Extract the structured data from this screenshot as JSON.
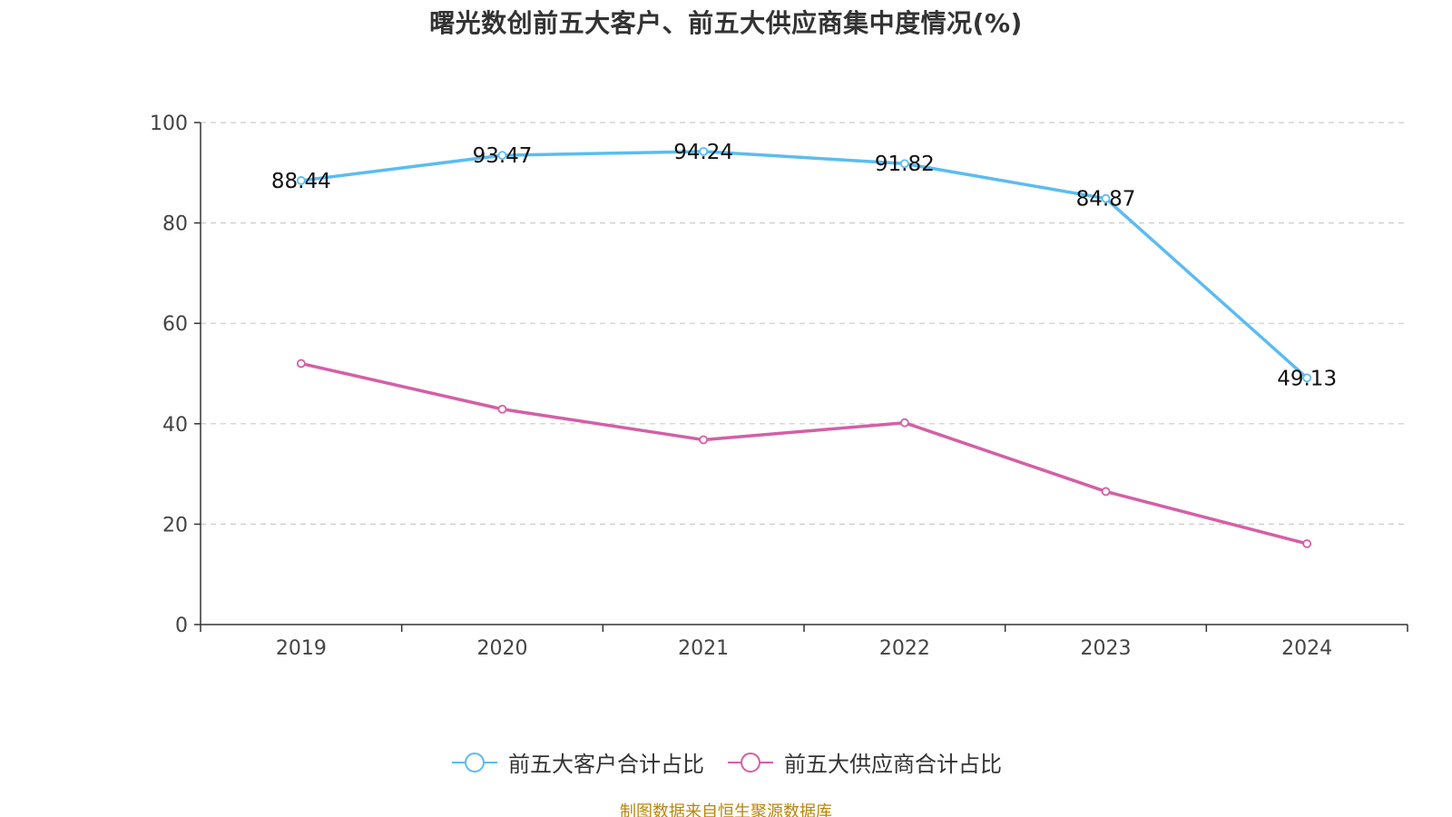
{
  "chart_data": {
    "type": "line",
    "title": "曙光数创前五大客户、前五大供应商集中度情况(%)",
    "categories": [
      "2019",
      "2020",
      "2021",
      "2022",
      "2023",
      "2024"
    ],
    "ylim": [
      0,
      100
    ],
    "yticks": [
      0,
      20,
      40,
      60,
      80,
      100
    ],
    "grid": true,
    "legend_position": "bottom",
    "series": [
      {
        "name": "前五大客户合计占比",
        "color": "#5bbcf0",
        "values": [
          88.44,
          93.47,
          94.24,
          91.82,
          84.87,
          49.13
        ],
        "labels": [
          "88.44",
          "93.47",
          "94.24",
          "91.82",
          "84.87",
          "49.13"
        ]
      },
      {
        "name": "前五大供应商合计占比",
        "color": "#d45fa6",
        "values": [
          52.0,
          42.9,
          36.8,
          40.2,
          26.5,
          16.1
        ]
      }
    ]
  },
  "source": "制图数据来自恒生聚源数据库"
}
